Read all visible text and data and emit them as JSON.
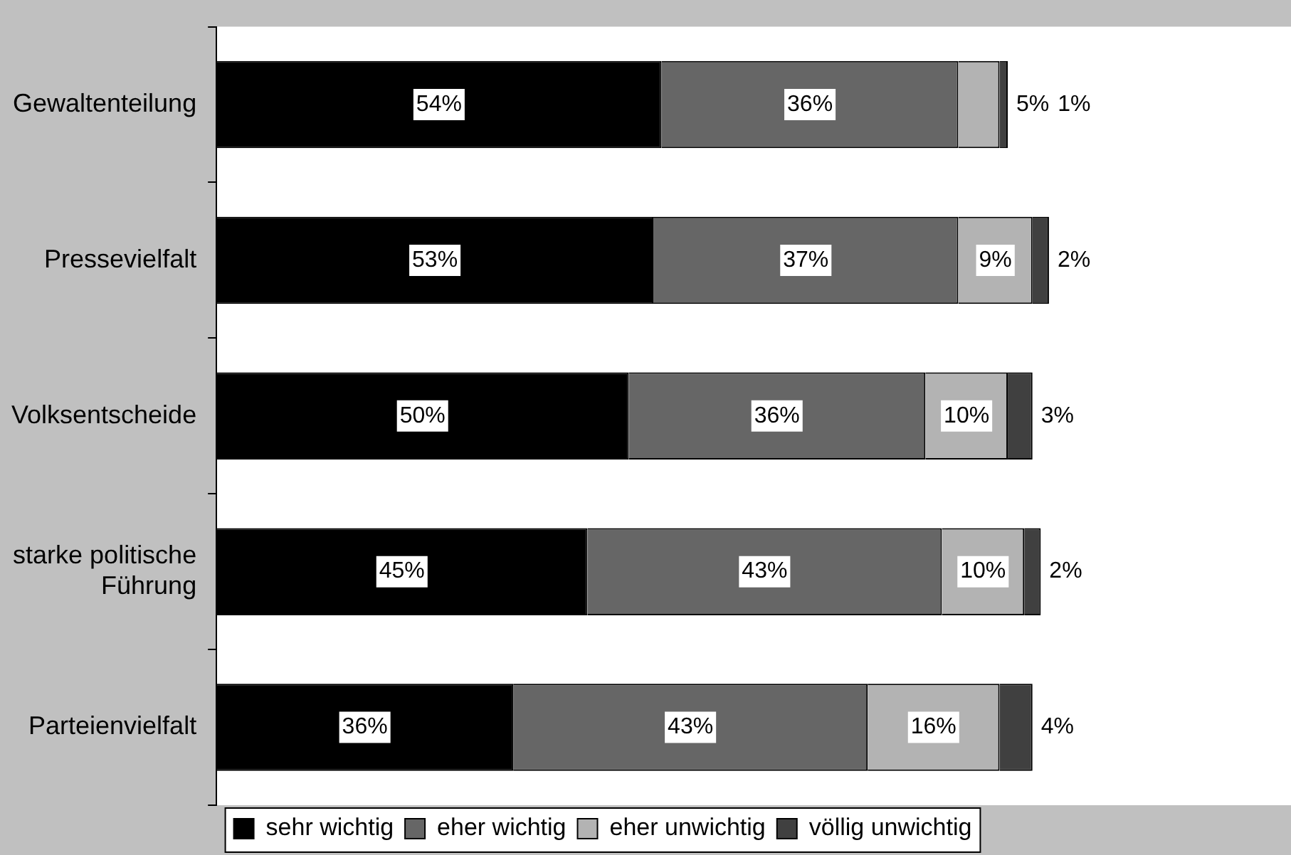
{
  "chart_data": {
    "type": "bar",
    "orientation": "horizontal",
    "stacked": true,
    "legend": "bottom",
    "grid": false,
    "tick_labels": "y",
    "categories": [
      "Gewaltenteilung",
      "Pressevielfalt",
      "Volksentscheide",
      "starke politische Führung",
      "Parteienvielfalt"
    ],
    "series": [
      {
        "name": "sehr wichtig",
        "color": "#000000",
        "values": [
          54,
          53,
          50,
          45,
          36
        ],
        "value_labels": [
          "54%",
          "53%",
          "50%",
          "45%",
          "36%"
        ]
      },
      {
        "name": "eher wichtig",
        "color": "#666666",
        "values": [
          36,
          37,
          36,
          43,
          43
        ],
        "value_labels": [
          "36%",
          "37%",
          "36%",
          "43%",
          "43%"
        ]
      },
      {
        "name": "eher unwichtig",
        "color": "#b3b3b3",
        "values": [
          5,
          9,
          10,
          10,
          16
        ],
        "value_labels": [
          "5%",
          "9%",
          "10%",
          "10%",
          "16%"
        ]
      },
      {
        "name": "völlig unwichtig",
        "color": "#404040",
        "values": [
          1,
          2,
          3,
          2,
          4
        ],
        "value_labels": [
          "1%",
          "2%",
          "3%",
          "2%",
          "4%"
        ]
      }
    ]
  }
}
